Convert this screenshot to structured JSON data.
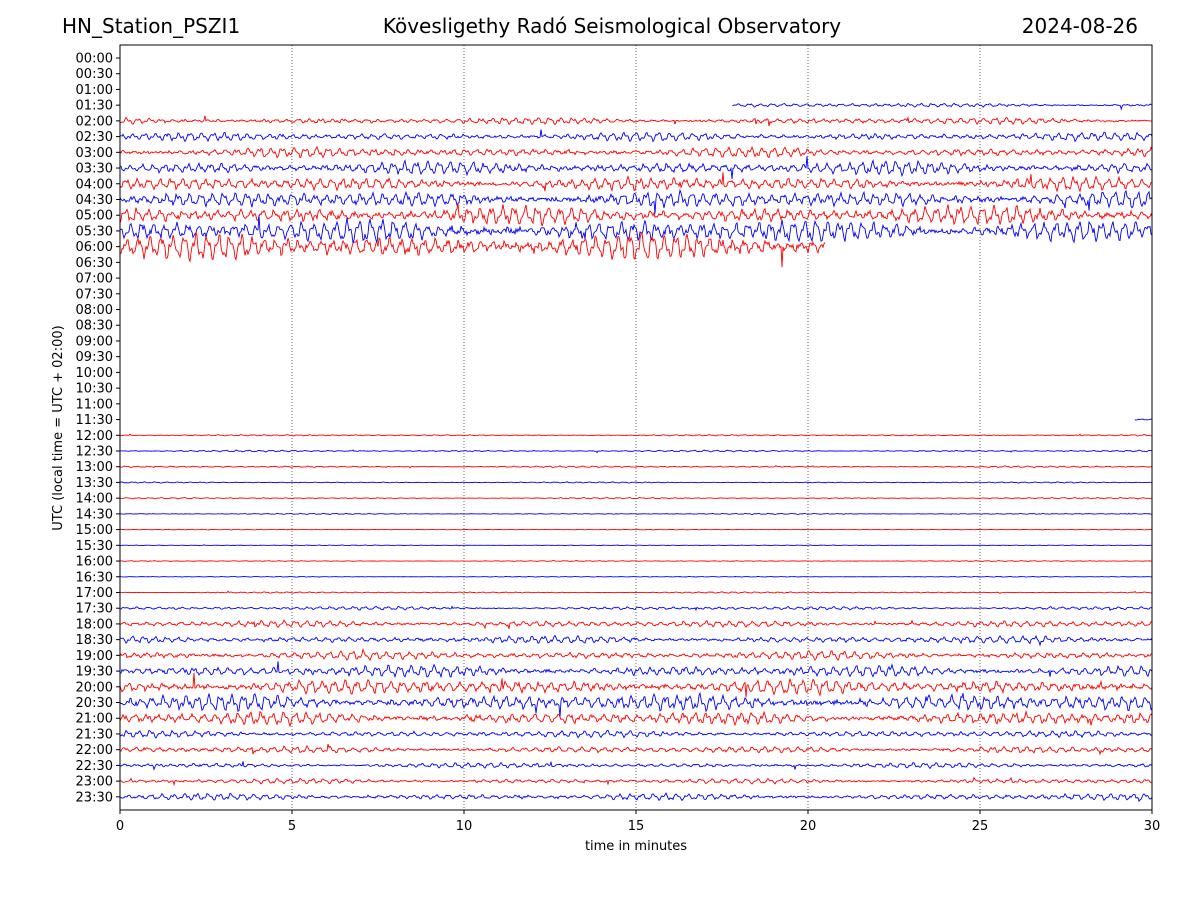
{
  "header": {
    "station": "HN_Station_PSZI1",
    "observatory": "Kövesligethy Radó Seismological Observatory",
    "date": "2024-08-26"
  },
  "chart_data": {
    "type": "line",
    "xlabel": "time in minutes",
    "ylabel": "UTC (local time = UTC + 02:00)",
    "xlim": [
      0,
      30
    ],
    "xticks": [
      "0",
      "5",
      "10",
      "15",
      "20",
      "25",
      "30"
    ],
    "ytick_labels": [
      "00:00",
      "00:30",
      "01:00",
      "01:30",
      "02:00",
      "02:30",
      "03:00",
      "03:30",
      "04:00",
      "04:30",
      "05:00",
      "05:30",
      "06:00",
      "06:30",
      "07:00",
      "07:30",
      "08:00",
      "08:30",
      "09:00",
      "09:30",
      "10:00",
      "10:30",
      "11:00",
      "11:30",
      "12:00",
      "12:30",
      "13:00",
      "13:30",
      "14:00",
      "14:30",
      "15:00",
      "15:30",
      "16:00",
      "16:30",
      "17:00",
      "17:30",
      "18:00",
      "18:30",
      "19:00",
      "19:30",
      "20:00",
      "20:30",
      "21:00",
      "21:30",
      "22:00",
      "22:30",
      "23:00",
      "23:30"
    ],
    "grid": "vertical dotted at 5-minute intervals",
    "colors": {
      "even_half_hour": "#ff0000",
      "odd_half_hour": "#0000ff"
    },
    "traces": [
      {
        "row": "01:30",
        "start_min": 17.8,
        "end_min": 30,
        "amplitude": 2.5
      },
      {
        "row": "02:00",
        "start_min": 0,
        "end_min": 30,
        "amplitude": 4
      },
      {
        "row": "02:30",
        "start_min": 0,
        "end_min": 30,
        "amplitude": 5
      },
      {
        "row": "03:00",
        "start_min": 0,
        "end_min": 30,
        "amplitude": 6
      },
      {
        "row": "03:30",
        "start_min": 0,
        "end_min": 30,
        "amplitude": 8
      },
      {
        "row": "04:00",
        "start_min": 0,
        "end_min": 30,
        "amplitude": 8
      },
      {
        "row": "04:30",
        "start_min": 0,
        "end_min": 30,
        "amplitude": 10
      },
      {
        "row": "05:00",
        "start_min": 0,
        "end_min": 30,
        "amplitude": 11
      },
      {
        "row": "05:30",
        "start_min": 0,
        "end_min": 30,
        "amplitude": 14
      },
      {
        "row": "06:00",
        "start_min": 0,
        "end_min": 20.5,
        "amplitude": 16
      },
      {
        "row": "11:30",
        "start_min": 29.5,
        "end_min": 30,
        "amplitude": 1
      },
      {
        "row": "12:00",
        "start_min": 0,
        "end_min": 30,
        "amplitude": 0.8
      },
      {
        "row": "12:30",
        "start_min": 0,
        "end_min": 30,
        "amplitude": 1
      },
      {
        "row": "13:00",
        "start_min": 0,
        "end_min": 30,
        "amplitude": 0.9
      },
      {
        "row": "13:30",
        "start_min": 0,
        "end_min": 30,
        "amplitude": 0.7
      },
      {
        "row": "14:00",
        "start_min": 0,
        "end_min": 30,
        "amplitude": 0.7
      },
      {
        "row": "14:30",
        "start_min": 0,
        "end_min": 30,
        "amplitude": 0.6
      },
      {
        "row": "15:00",
        "start_min": 0,
        "end_min": 30,
        "amplitude": 0.4
      },
      {
        "row": "15:30",
        "start_min": 0,
        "end_min": 30,
        "amplitude": 0.4
      },
      {
        "row": "16:00",
        "start_min": 0,
        "end_min": 30,
        "amplitude": 0.5
      },
      {
        "row": "16:30",
        "start_min": 0,
        "end_min": 30,
        "amplitude": 0.4
      },
      {
        "row": "17:00",
        "start_min": 0,
        "end_min": 30,
        "amplitude": 0.8
      },
      {
        "row": "17:30",
        "start_min": 0,
        "end_min": 30,
        "amplitude": 2
      },
      {
        "row": "18:00",
        "start_min": 0,
        "end_min": 30,
        "amplitude": 4
      },
      {
        "row": "18:30",
        "start_min": 0,
        "end_min": 30,
        "amplitude": 4.5
      },
      {
        "row": "19:00",
        "start_min": 0,
        "end_min": 30,
        "amplitude": 5
      },
      {
        "row": "19:30",
        "start_min": 0,
        "end_min": 30,
        "amplitude": 7
      },
      {
        "row": "20:00",
        "start_min": 0,
        "end_min": 30,
        "amplitude": 9
      },
      {
        "row": "20:30",
        "start_min": 0,
        "end_min": 30,
        "amplitude": 10
      },
      {
        "row": "21:00",
        "start_min": 0,
        "end_min": 30,
        "amplitude": 8
      },
      {
        "row": "21:30",
        "start_min": 0,
        "end_min": 30,
        "amplitude": 4
      },
      {
        "row": "22:00",
        "start_min": 0,
        "end_min": 30,
        "amplitude": 4
      },
      {
        "row": "22:30",
        "start_min": 0,
        "end_min": 30,
        "amplitude": 3
      },
      {
        "row": "23:00",
        "start_min": 0,
        "end_min": 30,
        "amplitude": 3
      },
      {
        "row": "23:30",
        "start_min": 0,
        "end_min": 30,
        "amplitude": 4
      }
    ]
  }
}
